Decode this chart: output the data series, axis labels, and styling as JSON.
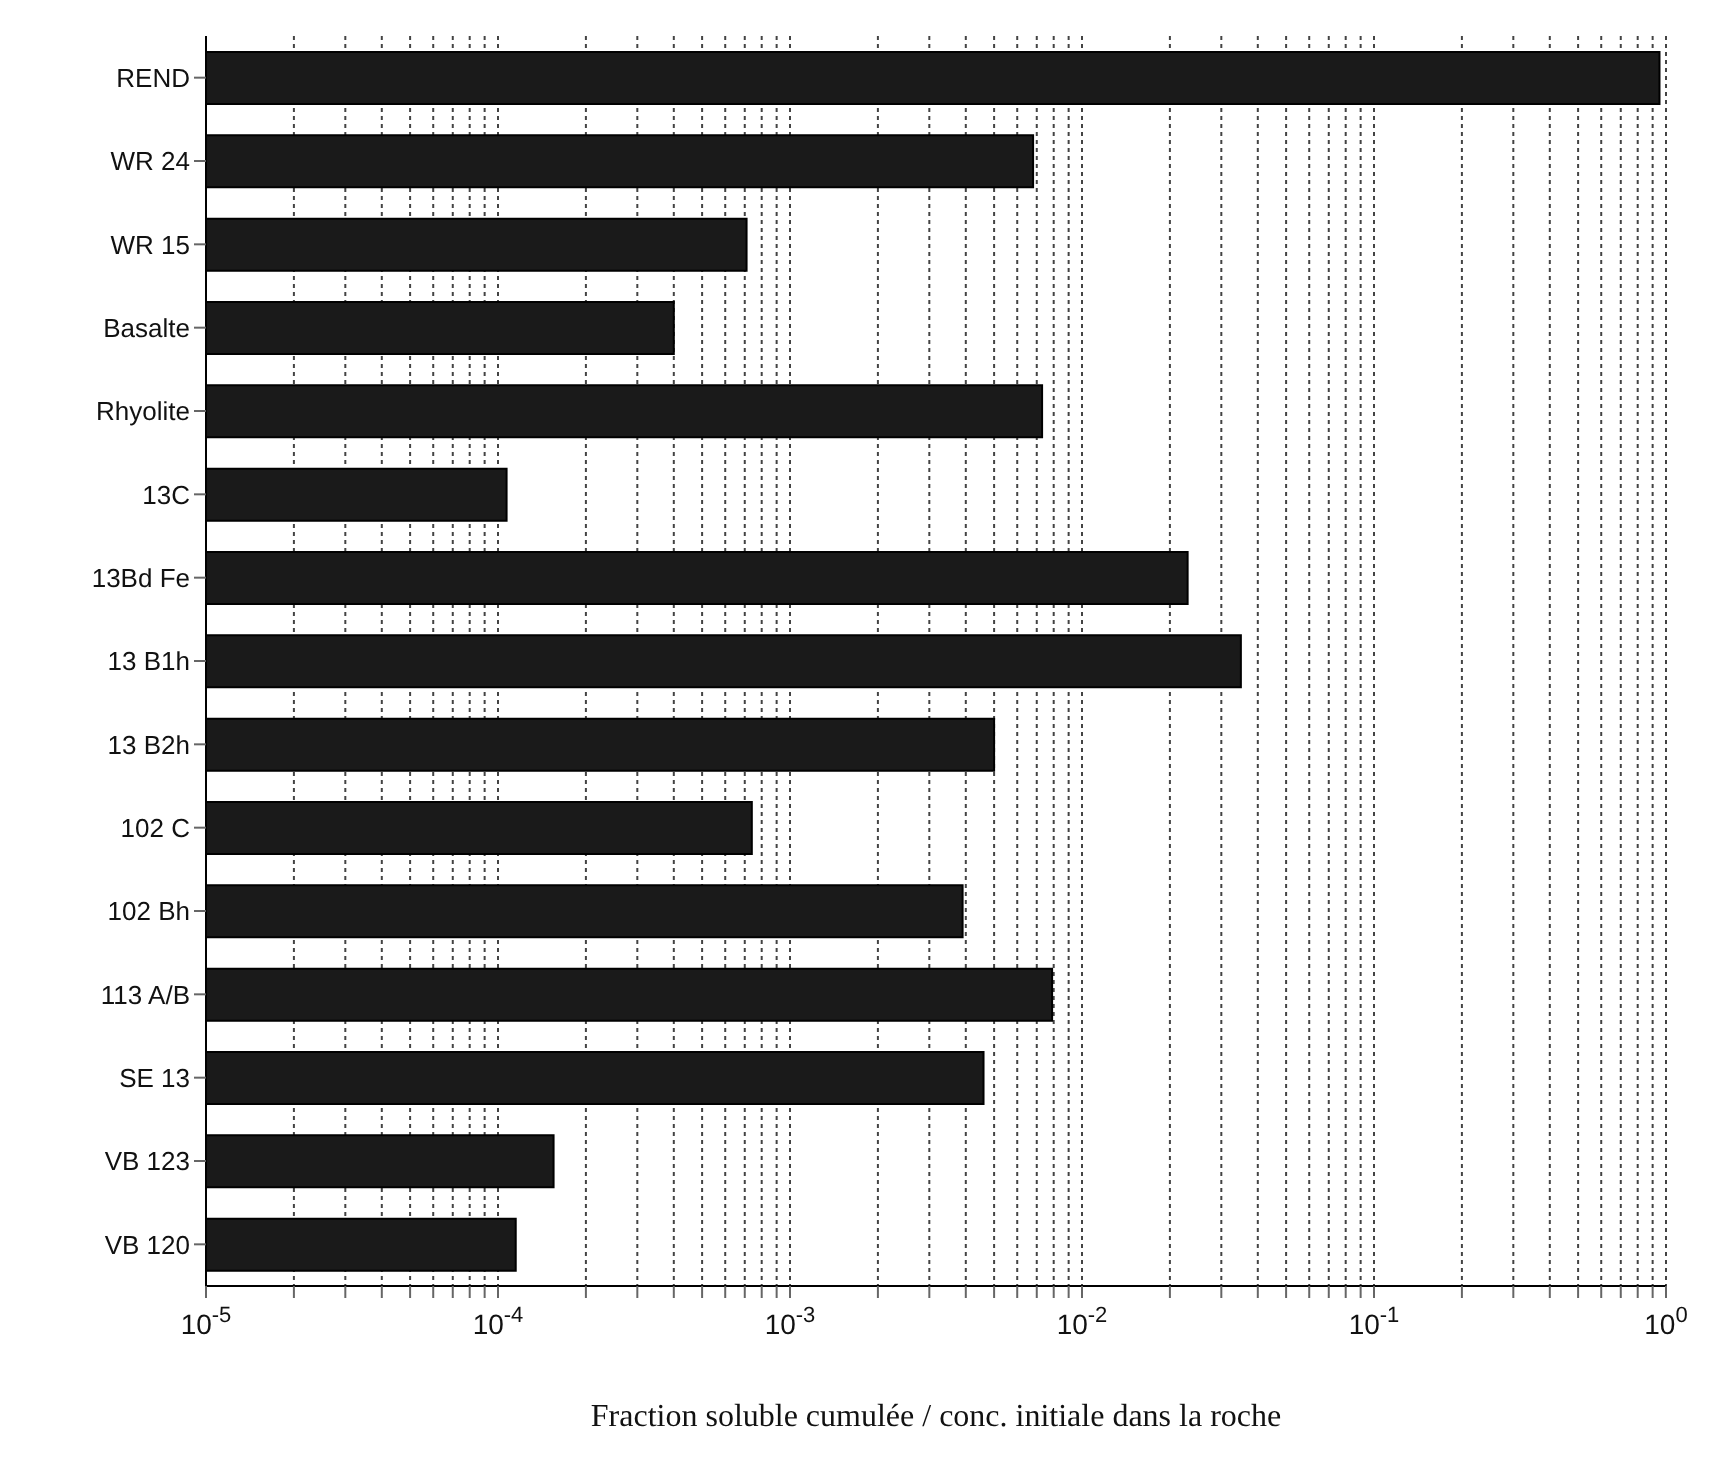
{
  "chart_data": {
    "type": "bar",
    "orientation": "horizontal",
    "log": "x",
    "grid": "x",
    "color": "#1a1a1a",
    "xlabel": "Fraction soluble cumulée / conc. initiale dans la roche",
    "categories": [
      "REND",
      "WR 24",
      "WR 15",
      "Basalte",
      "Rhyolite",
      "13C",
      "13Bd  Fe",
      "13 B1h",
      "13 B2h",
      "102 C",
      "102 Bh",
      "113 A/B",
      "SE 13",
      "VB 123",
      "VB 120"
    ],
    "values": [
      0.95,
      0.0068,
      0.00071,
      0.0004,
      0.0073,
      0.000107,
      0.023,
      0.035,
      0.005,
      0.00074,
      0.0039,
      0.0079,
      0.0046,
      0.000155,
      0.000115
    ],
    "xlim": [
      1e-05,
      1
    ],
    "xticks": [
      {
        "value": 1e-05,
        "label": "10$^{-5}$"
      },
      {
        "value": 2e-05,
        "label": null
      },
      {
        "value": 3e-05,
        "label": null
      },
      {
        "value": 4e-05,
        "label": null
      },
      {
        "value": 5e-05,
        "label": null
      },
      {
        "value": 6e-05,
        "label": null
      },
      {
        "value": 7e-05,
        "label": null
      },
      {
        "value": 8e-05,
        "label": null
      },
      {
        "value": 9e-05,
        "label": null
      },
      {
        "value": 0.0001,
        "label": "10$^{-4}$"
      },
      {
        "value": 0.0002,
        "label": null
      },
      {
        "value": 0.0003,
        "label": null
      },
      {
        "value": 0.0004,
        "label": null
      },
      {
        "value": 0.0005,
        "label": null
      },
      {
        "value": 0.0006,
        "label": null
      },
      {
        "value": 0.0007,
        "label": null
      },
      {
        "value": 0.0008,
        "label": null
      },
      {
        "value": 0.0009,
        "label": null
      },
      {
        "value": 0.001,
        "label": "10$^{-3}$"
      },
      {
        "value": 0.002,
        "label": null
      },
      {
        "value": 0.003,
        "label": null
      },
      {
        "value": 0.004,
        "label": null
      },
      {
        "value": 0.005,
        "label": null
      },
      {
        "value": 0.006,
        "label": null
      },
      {
        "value": 0.007,
        "label": null
      },
      {
        "value": 0.008,
        "label": null
      },
      {
        "value": 0.009,
        "label": null
      },
      {
        "value": 0.01,
        "label": "10$^{-2}$"
      },
      {
        "value": 0.02,
        "label": null
      },
      {
        "value": 0.03,
        "label": null
      },
      {
        "value": 0.04,
        "label": null
      },
      {
        "value": 0.05,
        "label": null
      },
      {
        "value": 0.06,
        "label": null
      },
      {
        "value": 0.07,
        "label": null
      },
      {
        "value": 0.08,
        "label": null
      },
      {
        "value": 0.09,
        "label": null
      },
      {
        "value": 0.1,
        "label": "10$^{-1}$"
      },
      {
        "value": 0.2,
        "label": null
      },
      {
        "value": 0.3,
        "label": null
      },
      {
        "value": 0.4,
        "label": null
      },
      {
        "value": 0.5,
        "label": null
      },
      {
        "value": 0.6,
        "label": null
      },
      {
        "value": 0.7,
        "label": null
      },
      {
        "value": 0.8,
        "label": null
      },
      {
        "value": 0.9,
        "label": null
      },
      {
        "value": 1,
        "label": "10$^{0}$"
      }
    ]
  }
}
